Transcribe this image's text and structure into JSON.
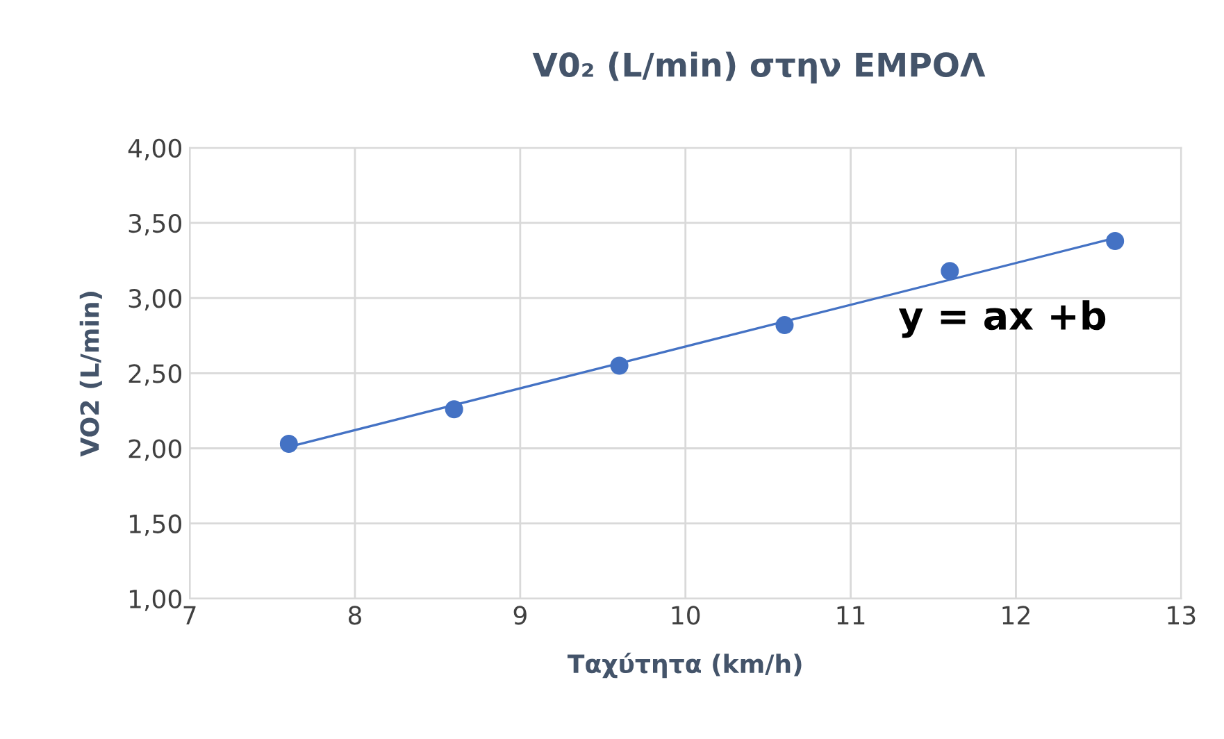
{
  "chart_data": {
    "type": "scatter",
    "title": "V0₂ (L/min) στην ΕΜΡΟΛ",
    "xlabel": "Ταχύτητα (km/h)",
    "ylabel": "VO2 (L/min)",
    "series": [
      {
        "color": "#4472c4",
        "marker": "circle",
        "x": [
          7.6,
          8.6,
          9.6,
          10.6,
          11.6,
          12.6
        ],
        "values": [
          2.03,
          2.26,
          2.55,
          2.82,
          3.18,
          3.38
        ]
      },
      {
        "type": "line",
        "color": "#4472c4",
        "marker": "none",
        "x": [
          7.6,
          12.6
        ],
        "values": [
          2.01,
          3.4
        ]
      }
    ],
    "annotations": [
      "y = ax +b"
    ],
    "xlim": [
      7,
      13
    ],
    "xticks": [
      7,
      8,
      9,
      10,
      11,
      12,
      13
    ],
    "ylim": [
      1,
      4
    ],
    "yticks": [
      {
        "value": 1,
        "label": "1,00"
      },
      {
        "value": 1.5,
        "label": "1,50"
      },
      {
        "value": 2,
        "label": "2,00"
      },
      {
        "value": 2.5,
        "label": "2,50"
      },
      {
        "value": 3,
        "label": "3,00"
      },
      {
        "value": 3.5,
        "label": "3,50"
      },
      {
        "value": 4,
        "label": "4,00"
      }
    ],
    "grid": true,
    "legend": false
  }
}
